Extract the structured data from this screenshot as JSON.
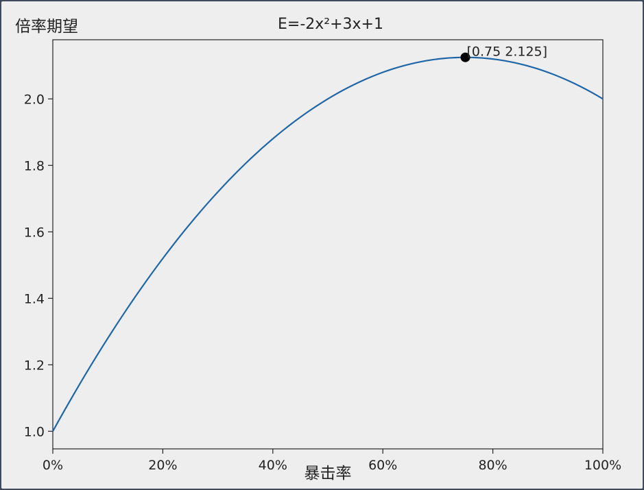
{
  "chart_data": {
    "type": "line",
    "title": "E=-2x²+3x+1",
    "xlabel": "暴击率",
    "ylabel": "倍率期望",
    "xlim": [
      0,
      1
    ],
    "ylim": [
      0.947,
      2.178
    ],
    "x_ticks": [
      0,
      0.2,
      0.4,
      0.6,
      0.8,
      1.0
    ],
    "x_tick_labels": [
      "0%",
      "20%",
      "40%",
      "60%",
      "80%",
      "100%"
    ],
    "y_ticks": [
      1.0,
      1.2,
      1.4,
      1.6,
      1.8,
      2.0
    ],
    "y_tick_labels": [
      "1.0",
      "1.2",
      "1.4",
      "1.6",
      "1.8",
      "2.0"
    ],
    "grid": false,
    "series": [
      {
        "color": "#1f66a8",
        "x": [
          0,
          0.1,
          0.2,
          0.3,
          0.4,
          0.5,
          0.6,
          0.7,
          0.75,
          0.8,
          0.9,
          1.0
        ],
        "y": [
          1.0,
          1.28,
          1.52,
          1.72,
          1.88,
          2.0,
          2.08,
          2.12,
          2.125,
          2.12,
          2.08,
          2.0
        ]
      }
    ],
    "highlight_point": {
      "x": 0.75,
      "y": 2.125,
      "label": "[0.75 2.125]",
      "color": "#000000"
    }
  }
}
